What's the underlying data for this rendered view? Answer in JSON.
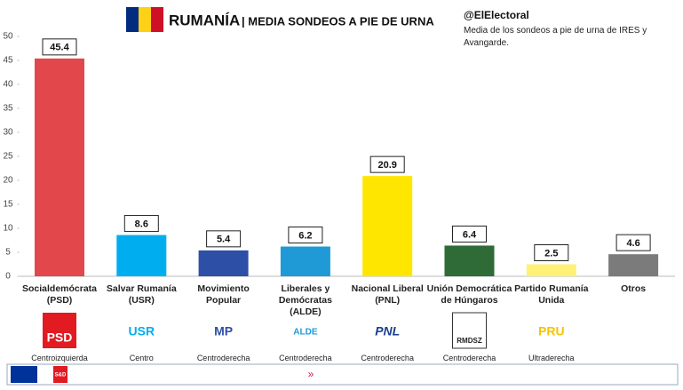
{
  "header": {
    "title": "RUMANÍA",
    "subtitle": "| MEDIA SONDEOS A PIE DE URNA",
    "source": "@ElElectoral",
    "note": "Media de los sondeos a pie de urna de IRES y Avangarde."
  },
  "chart_data": {
    "type": "bar",
    "categories": [
      "Socialdemócrata (PSD)",
      "Salvar Rumanía (USR)",
      "Movimiento Popular",
      "Liberales y Demócratas (ALDE)",
      "Nacional Liberal (PNL)",
      "Unión Democrática de Húngaros",
      "Partido Rumanía Unida",
      "Otros"
    ],
    "values": [
      45.4,
      8.6,
      5.4,
      6.2,
      20.9,
      6.4,
      2.5,
      4.6
    ],
    "colors": [
      "#e2474b",
      "#00aeef",
      "#2d4fa5",
      "#1f9ad6",
      "#ffe600",
      "#2e6b36",
      "#fff176",
      "#7b7b7b"
    ],
    "ylim": [
      0,
      50
    ],
    "yticks": [
      0,
      5,
      10,
      15,
      20,
      25,
      30,
      35,
      40,
      45,
      50
    ],
    "grid": false
  },
  "logos": [
    "PSD",
    "USR",
    "MP",
    "ALDE",
    "PNL",
    "RMDSZ",
    "PRU",
    null
  ],
  "ideology": [
    "Centroizquierda",
    "Centro",
    "Centroderecha",
    "Centroderecha",
    "Centroderecha",
    "Centroderecha",
    "Ultraderecha",
    null
  ],
  "footer": {
    "badge": "S&D"
  }
}
